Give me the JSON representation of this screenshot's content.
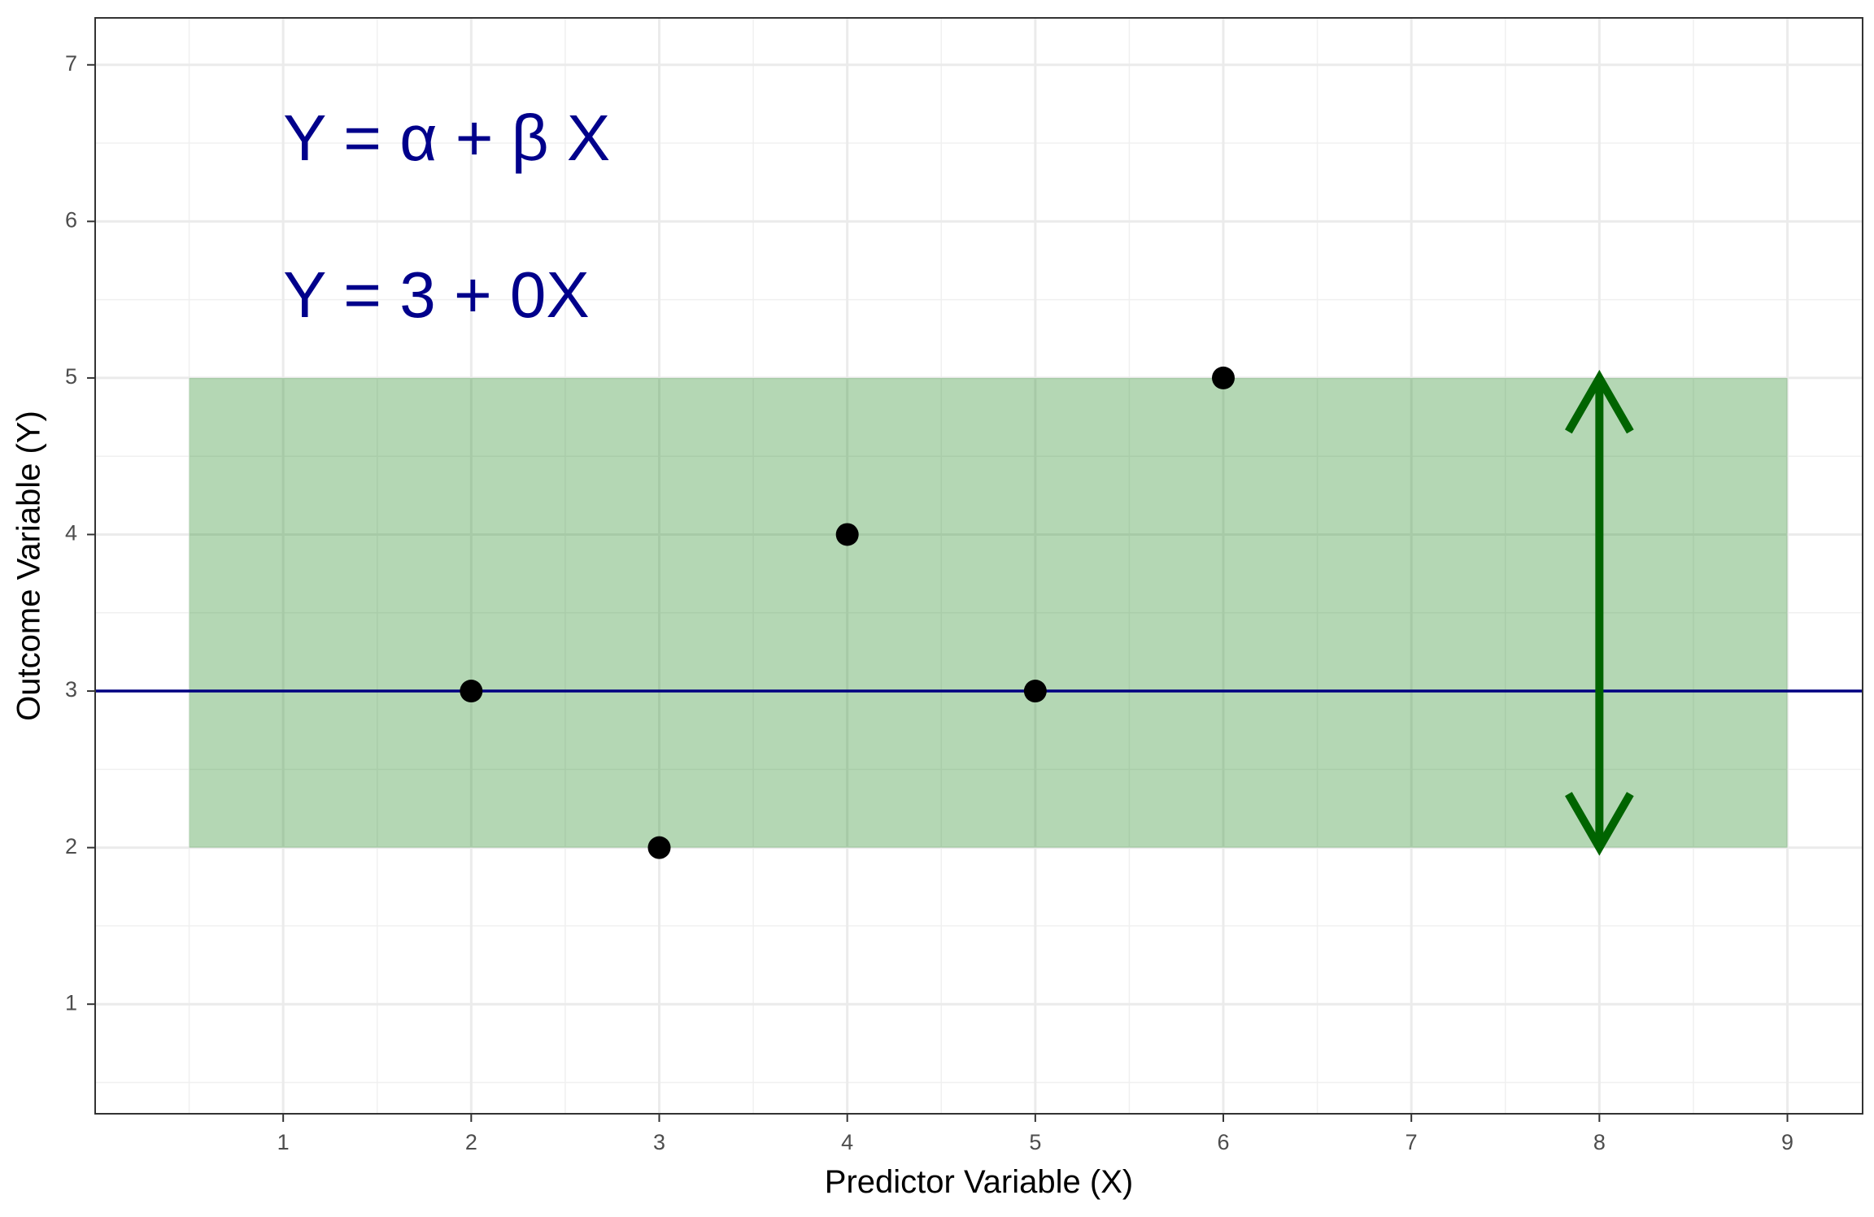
{
  "chart_data": {
    "type": "scatter",
    "title": "",
    "xlabel": "Predictor Variable (X)",
    "ylabel": "Outcome Variable (Y)",
    "xlim": [
      0.0,
      9.4
    ],
    "ylim": [
      0.3,
      7.3
    ],
    "x_ticks": [
      1,
      2,
      3,
      4,
      5,
      6,
      7,
      8,
      9
    ],
    "y_ticks": [
      1,
      2,
      3,
      4,
      5,
      6,
      7
    ],
    "grid": true,
    "points": [
      {
        "x": 2,
        "y": 3
      },
      {
        "x": 3,
        "y": 2
      },
      {
        "x": 4,
        "y": 4
      },
      {
        "x": 5,
        "y": 3
      },
      {
        "x": 6,
        "y": 5
      }
    ],
    "fit_line": {
      "intercept": 3,
      "slope": 0,
      "color": "#000080"
    },
    "band": {
      "x": [
        0.5,
        9
      ],
      "y": [
        2,
        5
      ],
      "color": "#228B22"
    },
    "arrow": {
      "x": 8,
      "y": [
        2,
        5
      ],
      "color": "#006400"
    },
    "annotations": [
      {
        "text": "Y = α + β X",
        "x": 1.0,
        "y": 6.5
      },
      {
        "text": "Y = 3 + 0X",
        "x": 1.0,
        "y": 5.5
      }
    ],
    "annotation_color": "#00008B",
    "point_color": "#000000"
  }
}
